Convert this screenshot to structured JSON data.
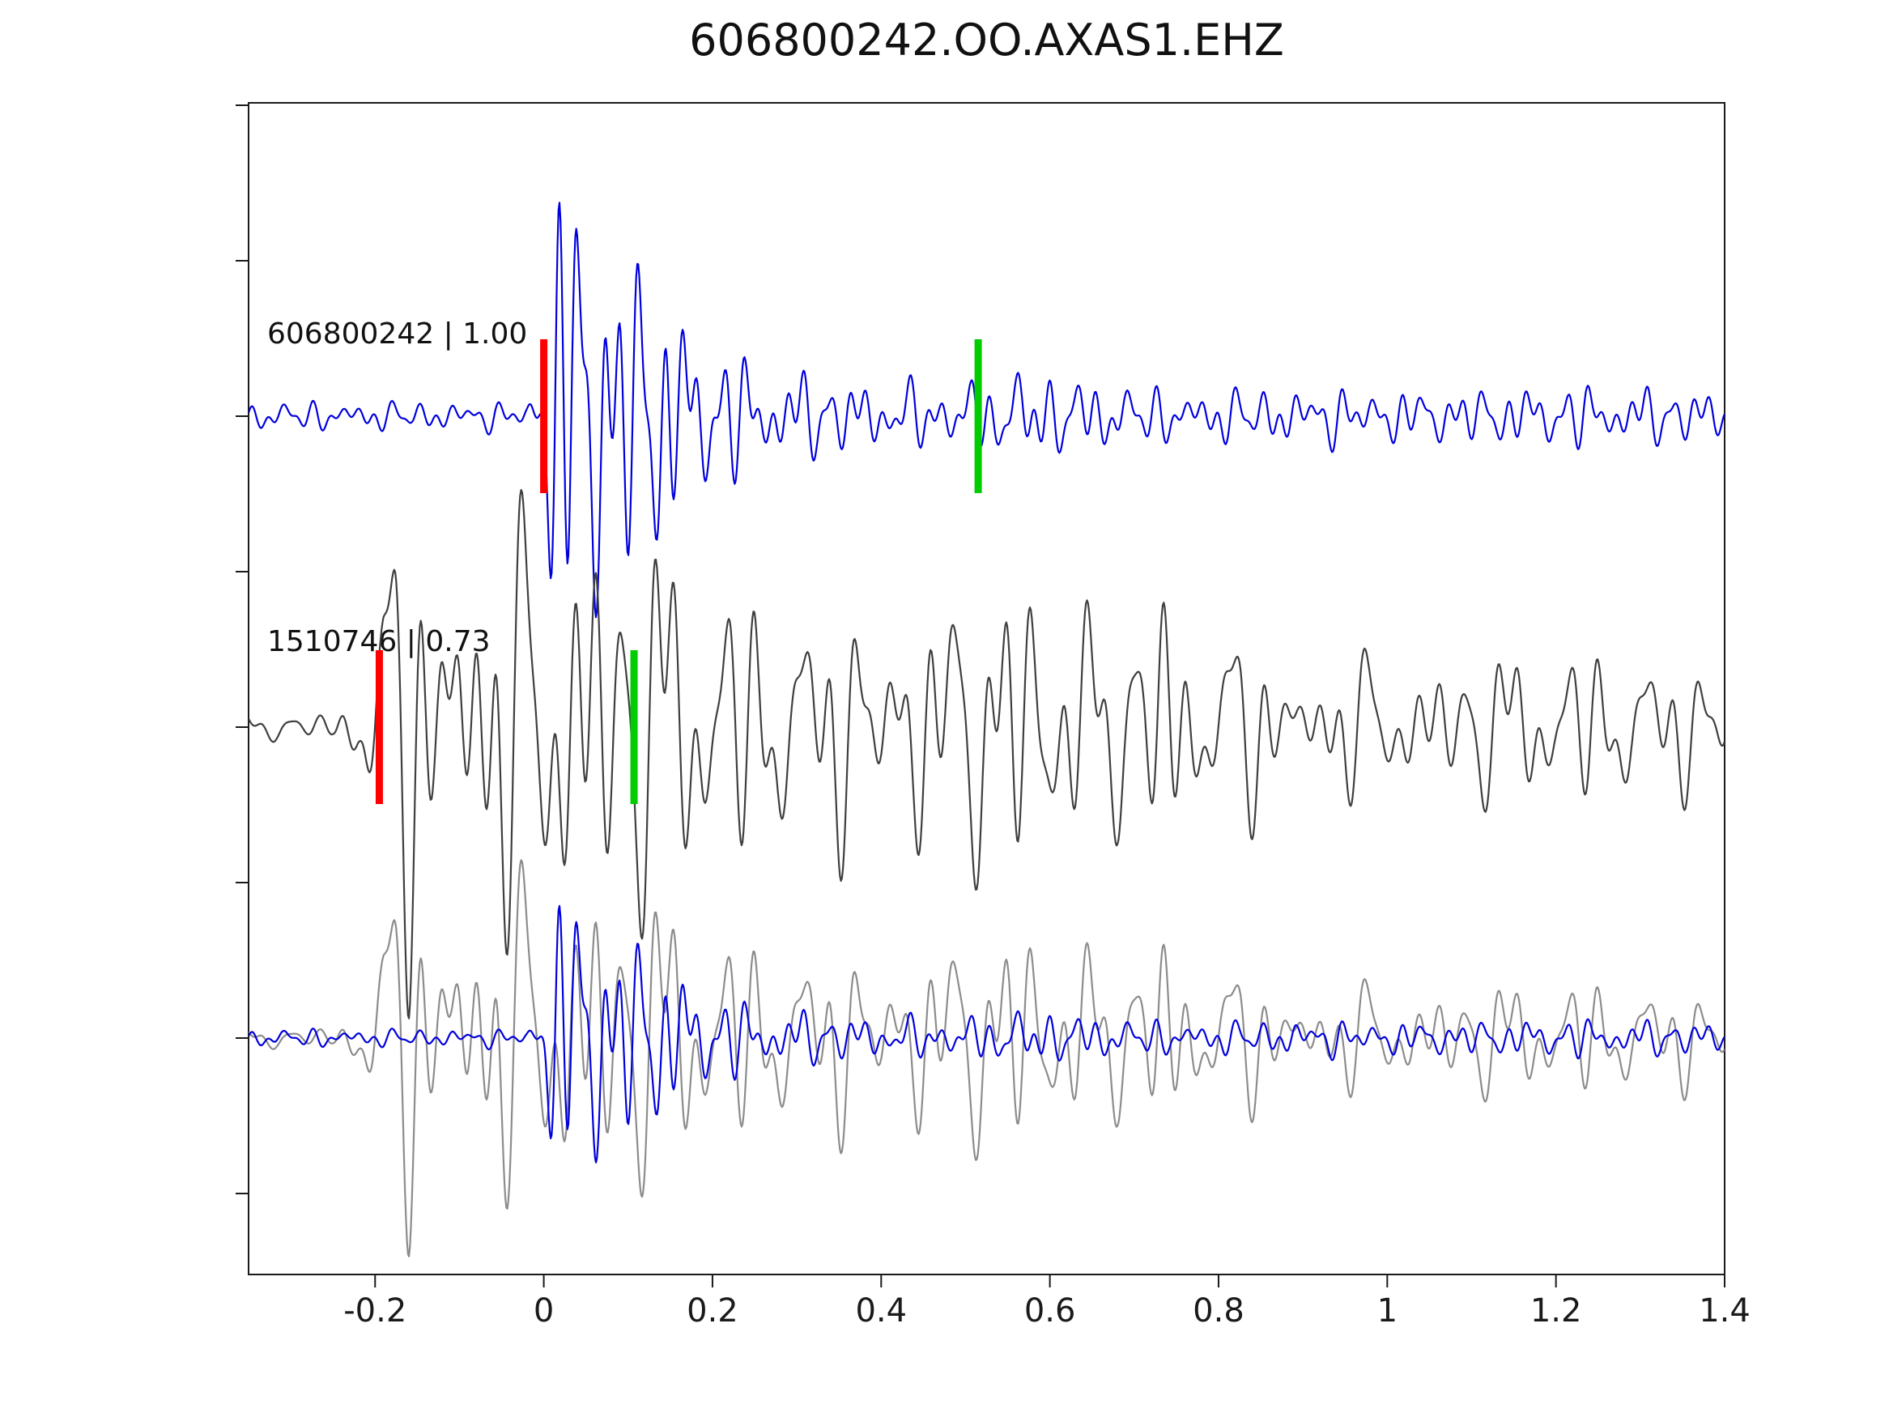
{
  "chart_data": {
    "type": "line",
    "title": "606800242.OO.AXAS1.EHZ",
    "subtitle": "",
    "xlabel": "",
    "ylabel": "",
    "xlim": [
      -0.35,
      1.4
    ],
    "x_ticks": [
      -0.2,
      0,
      0.2,
      0.4,
      0.6,
      0.8,
      1,
      1.2,
      1.4
    ],
    "x_tick_labels": [
      "-0.2",
      "0",
      "0.2",
      "0.4",
      "0.6",
      "0.8",
      "1",
      "1.2",
      "1.4"
    ],
    "y_tick_offsets": [
      3,
      2.5,
      2,
      1.5,
      1,
      0.5,
      0,
      -0.5
    ],
    "grid": false,
    "legend": "none",
    "axis_color": "#1a1a1a",
    "tick_label_color": "#1a1a1a",
    "traces": [
      {
        "id": "606800242",
        "label": "606800242 | 1.00",
        "row": 2,
        "picks": [
          {
            "x": 0.0,
            "color": "#ff0000"
          },
          {
            "x": 0.515,
            "color": "#00cc00"
          }
        ],
        "series": [
          {
            "variant": "template",
            "color": "#0000dd",
            "amp": 210,
            "seed": 3,
            "freqs": [
              15,
              23,
              31,
              41,
              55
            ],
            "envelope": [
              [
                -0.35,
                0.05
              ],
              [
                -0.02,
                0.05
              ],
              [
                0,
                0.18
              ],
              [
                0.015,
                0.9
              ],
              [
                0.03,
                1
              ],
              [
                0.05,
                0.8
              ],
              [
                0.08,
                0.55
              ],
              [
                0.12,
                0.62
              ],
              [
                0.16,
                0.38
              ],
              [
                0.2,
                0.25
              ],
              [
                0.26,
                0.18
              ],
              [
                0.33,
                0.14
              ],
              [
                0.42,
                0.11
              ],
              [
                0.5,
                0.12
              ],
              [
                0.58,
                0.16
              ],
              [
                0.66,
                0.12
              ],
              [
                0.75,
                0.09
              ],
              [
                0.9,
                0.1
              ],
              [
                1.05,
                0.09
              ],
              [
                1.2,
                0.11
              ],
              [
                1.4,
                0.09
              ]
            ]
          }
        ]
      },
      {
        "id": "1510746",
        "label": "1510746 | 0.73",
        "row": 1,
        "picks": [
          {
            "x": -0.195,
            "color": "#ff0000"
          },
          {
            "x": 0.107,
            "color": "#00cc00"
          }
        ],
        "series": [
          {
            "variant": "detection",
            "color": "#3f3f3f",
            "amp": 200,
            "seed": 11,
            "freqs": [
              12,
              18,
              25,
              33,
              43
            ],
            "envelope": [
              [
                -0.35,
                0.05
              ],
              [
                -0.25,
                0.05
              ],
              [
                -0.22,
                0.2
              ],
              [
                -0.19,
                0.65
              ],
              [
                -0.16,
                0.8
              ],
              [
                -0.13,
                0.7
              ],
              [
                -0.1,
                1
              ],
              [
                -0.07,
                0.85
              ],
              [
                -0.04,
                0.7
              ],
              [
                0,
                0.8
              ],
              [
                0.03,
                0.9
              ],
              [
                0.07,
                0.8
              ],
              [
                0.11,
                0.65
              ],
              [
                0.14,
                0.8
              ],
              [
                0.18,
                0.6
              ],
              [
                0.23,
                0.5
              ],
              [
                0.3,
                0.42
              ],
              [
                0.37,
                0.45
              ],
              [
                0.44,
                0.4
              ],
              [
                0.5,
                0.55
              ],
              [
                0.56,
                0.6
              ],
              [
                0.62,
                0.45
              ],
              [
                0.68,
                0.4
              ],
              [
                0.73,
                0.55
              ],
              [
                0.78,
                0.35
              ],
              [
                0.85,
                0.3
              ],
              [
                0.95,
                0.25
              ],
              [
                1.05,
                0.22
              ],
              [
                1.15,
                0.3
              ],
              [
                1.25,
                0.28
              ],
              [
                1.4,
                0.22
              ]
            ]
          }
        ]
      },
      {
        "id": "overlay",
        "label": "",
        "row": 0,
        "picks": [],
        "series": [
          {
            "variant": "detection",
            "color": "#8c8c8c",
            "amp": 150,
            "seed": 11,
            "freqs": [
              12,
              18,
              25,
              33,
              43
            ],
            "envelope": [
              [
                -0.35,
                0.05
              ],
              [
                -0.25,
                0.05
              ],
              [
                -0.22,
                0.2
              ],
              [
                -0.19,
                0.65
              ],
              [
                -0.16,
                0.8
              ],
              [
                -0.13,
                0.7
              ],
              [
                -0.1,
                1
              ],
              [
                -0.07,
                0.85
              ],
              [
                -0.04,
                0.7
              ],
              [
                0,
                0.8
              ],
              [
                0.03,
                0.9
              ],
              [
                0.07,
                0.8
              ],
              [
                0.11,
                0.65
              ],
              [
                0.14,
                0.8
              ],
              [
                0.18,
                0.6
              ],
              [
                0.23,
                0.5
              ],
              [
                0.3,
                0.42
              ],
              [
                0.37,
                0.45
              ],
              [
                0.44,
                0.4
              ],
              [
                0.5,
                0.55
              ],
              [
                0.56,
                0.6
              ],
              [
                0.62,
                0.45
              ],
              [
                0.68,
                0.4
              ],
              [
                0.73,
                0.55
              ],
              [
                0.78,
                0.35
              ],
              [
                0.85,
                0.3
              ],
              [
                0.95,
                0.25
              ],
              [
                1.05,
                0.22
              ],
              [
                1.15,
                0.3
              ],
              [
                1.25,
                0.28
              ],
              [
                1.4,
                0.22
              ]
            ]
          },
          {
            "variant": "template",
            "color": "#0000dd",
            "amp": 130,
            "seed": 3,
            "freqs": [
              15,
              23,
              31,
              41,
              55
            ],
            "envelope": [
              [
                -0.35,
                0.05
              ],
              [
                -0.02,
                0.05
              ],
              [
                0,
                0.18
              ],
              [
                0.015,
                0.9
              ],
              [
                0.03,
                1
              ],
              [
                0.05,
                0.8
              ],
              [
                0.08,
                0.55
              ],
              [
                0.12,
                0.62
              ],
              [
                0.16,
                0.38
              ],
              [
                0.2,
                0.25
              ],
              [
                0.26,
                0.18
              ],
              [
                0.33,
                0.14
              ],
              [
                0.42,
                0.11
              ],
              [
                0.5,
                0.12
              ],
              [
                0.58,
                0.16
              ],
              [
                0.66,
                0.12
              ],
              [
                0.75,
                0.09
              ],
              [
                0.9,
                0.1
              ],
              [
                1.05,
                0.09
              ],
              [
                1.2,
                0.11
              ],
              [
                1.4,
                0.09
              ]
            ]
          }
        ]
      }
    ]
  }
}
